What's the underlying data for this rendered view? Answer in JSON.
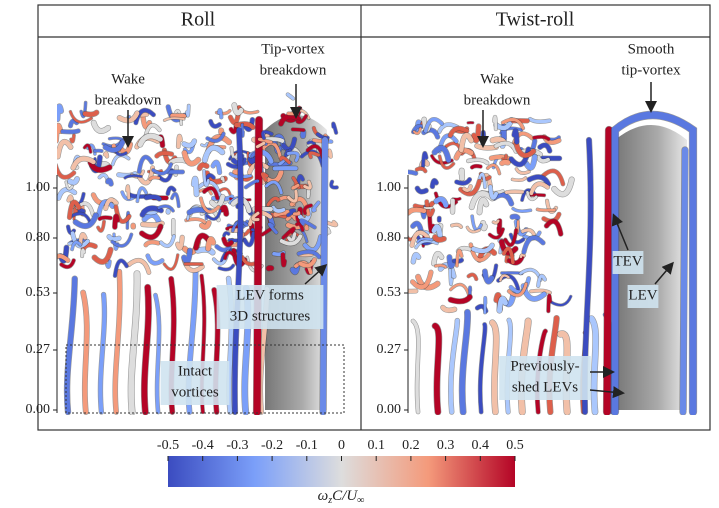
{
  "panels": [
    {
      "title": "Roll",
      "yticks": [
        "1.00",
        "0.80",
        "0.53",
        "0.27",
        "0.00"
      ],
      "annotations": [
        [
          "Wake",
          "breakdown"
        ],
        [
          "Tip-vortex",
          "breakdown"
        ],
        [
          "LEV forms",
          "3D structures"
        ],
        [
          "Intact",
          "vortices"
        ]
      ]
    },
    {
      "title": "Twist-roll",
      "yticks": [
        "1.00",
        "0.80",
        "0.53",
        "0.27",
        "0.00"
      ],
      "annotations": [
        [
          "Wake",
          "breakdown"
        ],
        [
          "Smooth",
          "tip-vortex"
        ],
        [
          "TEV"
        ],
        [
          "LEV"
        ],
        [
          "Previously-",
          "shed LEVs"
        ]
      ]
    }
  ],
  "colorbar": {
    "ticks": [
      "-0.5",
      "-0.4",
      "-0.3",
      "-0.2",
      "-0.1",
      "0",
      "0.1",
      "0.2",
      "0.3",
      "0.4",
      "0.5"
    ],
    "label": [
      "ω",
      "z",
      "C/U",
      "∞"
    ]
  }
}
